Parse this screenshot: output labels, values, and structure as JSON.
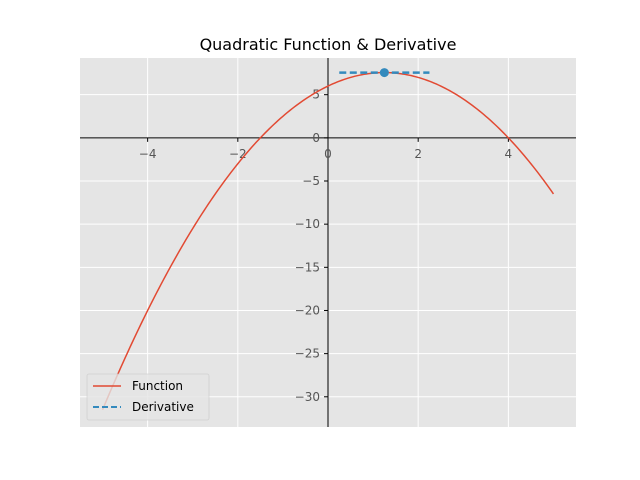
{
  "chart_data": {
    "type": "line",
    "title": "Quadratic Function & Derivative",
    "xlabel": "",
    "ylabel": "",
    "xlim": [
      -5.5,
      5.5
    ],
    "ylim": [
      -33.5,
      9.25
    ],
    "xticks": [
      -4,
      -2,
      0,
      2,
      4
    ],
    "yticks": [
      5,
      0,
      -5,
      -10,
      -15,
      -20,
      -25,
      -30
    ],
    "grid": true,
    "legend_position": "lower-left",
    "axes_through_origin": true,
    "function": {
      "expression": "-x^2 + 2.5x + 6",
      "x_range": [
        -5,
        5
      ],
      "points": [
        {
          "x": -5,
          "y": -31.5
        },
        {
          "x": -4,
          "y": -20
        },
        {
          "x": -3,
          "y": -10.5
        },
        {
          "x": -2,
          "y": -3
        },
        {
          "x": -1,
          "y": 2.5
        },
        {
          "x": 0,
          "y": 6
        },
        {
          "x": 1,
          "y": 7.5
        },
        {
          "x": 1.25,
          "y": 7.5625
        },
        {
          "x": 2,
          "y": 7
        },
        {
          "x": 3,
          "y": 4.5
        },
        {
          "x": 4,
          "y": 0
        },
        {
          "x": 5,
          "y": -6.5
        }
      ]
    },
    "series": [
      {
        "name": "Function",
        "color": "#E24A33",
        "style": "solid"
      },
      {
        "name": "Derivative",
        "color": "#348ABD",
        "style": "dashed"
      }
    ],
    "derivative_tangent": {
      "point": {
        "x": 1.25,
        "y": 7.5625
      },
      "x_range": [
        0.25,
        2.25
      ],
      "slope": 0
    },
    "colors": {
      "plot_background": "#E5E5E5",
      "grid": "#FFFFFF",
      "axis_line": "#000000",
      "tick_text": "#555555"
    }
  }
}
